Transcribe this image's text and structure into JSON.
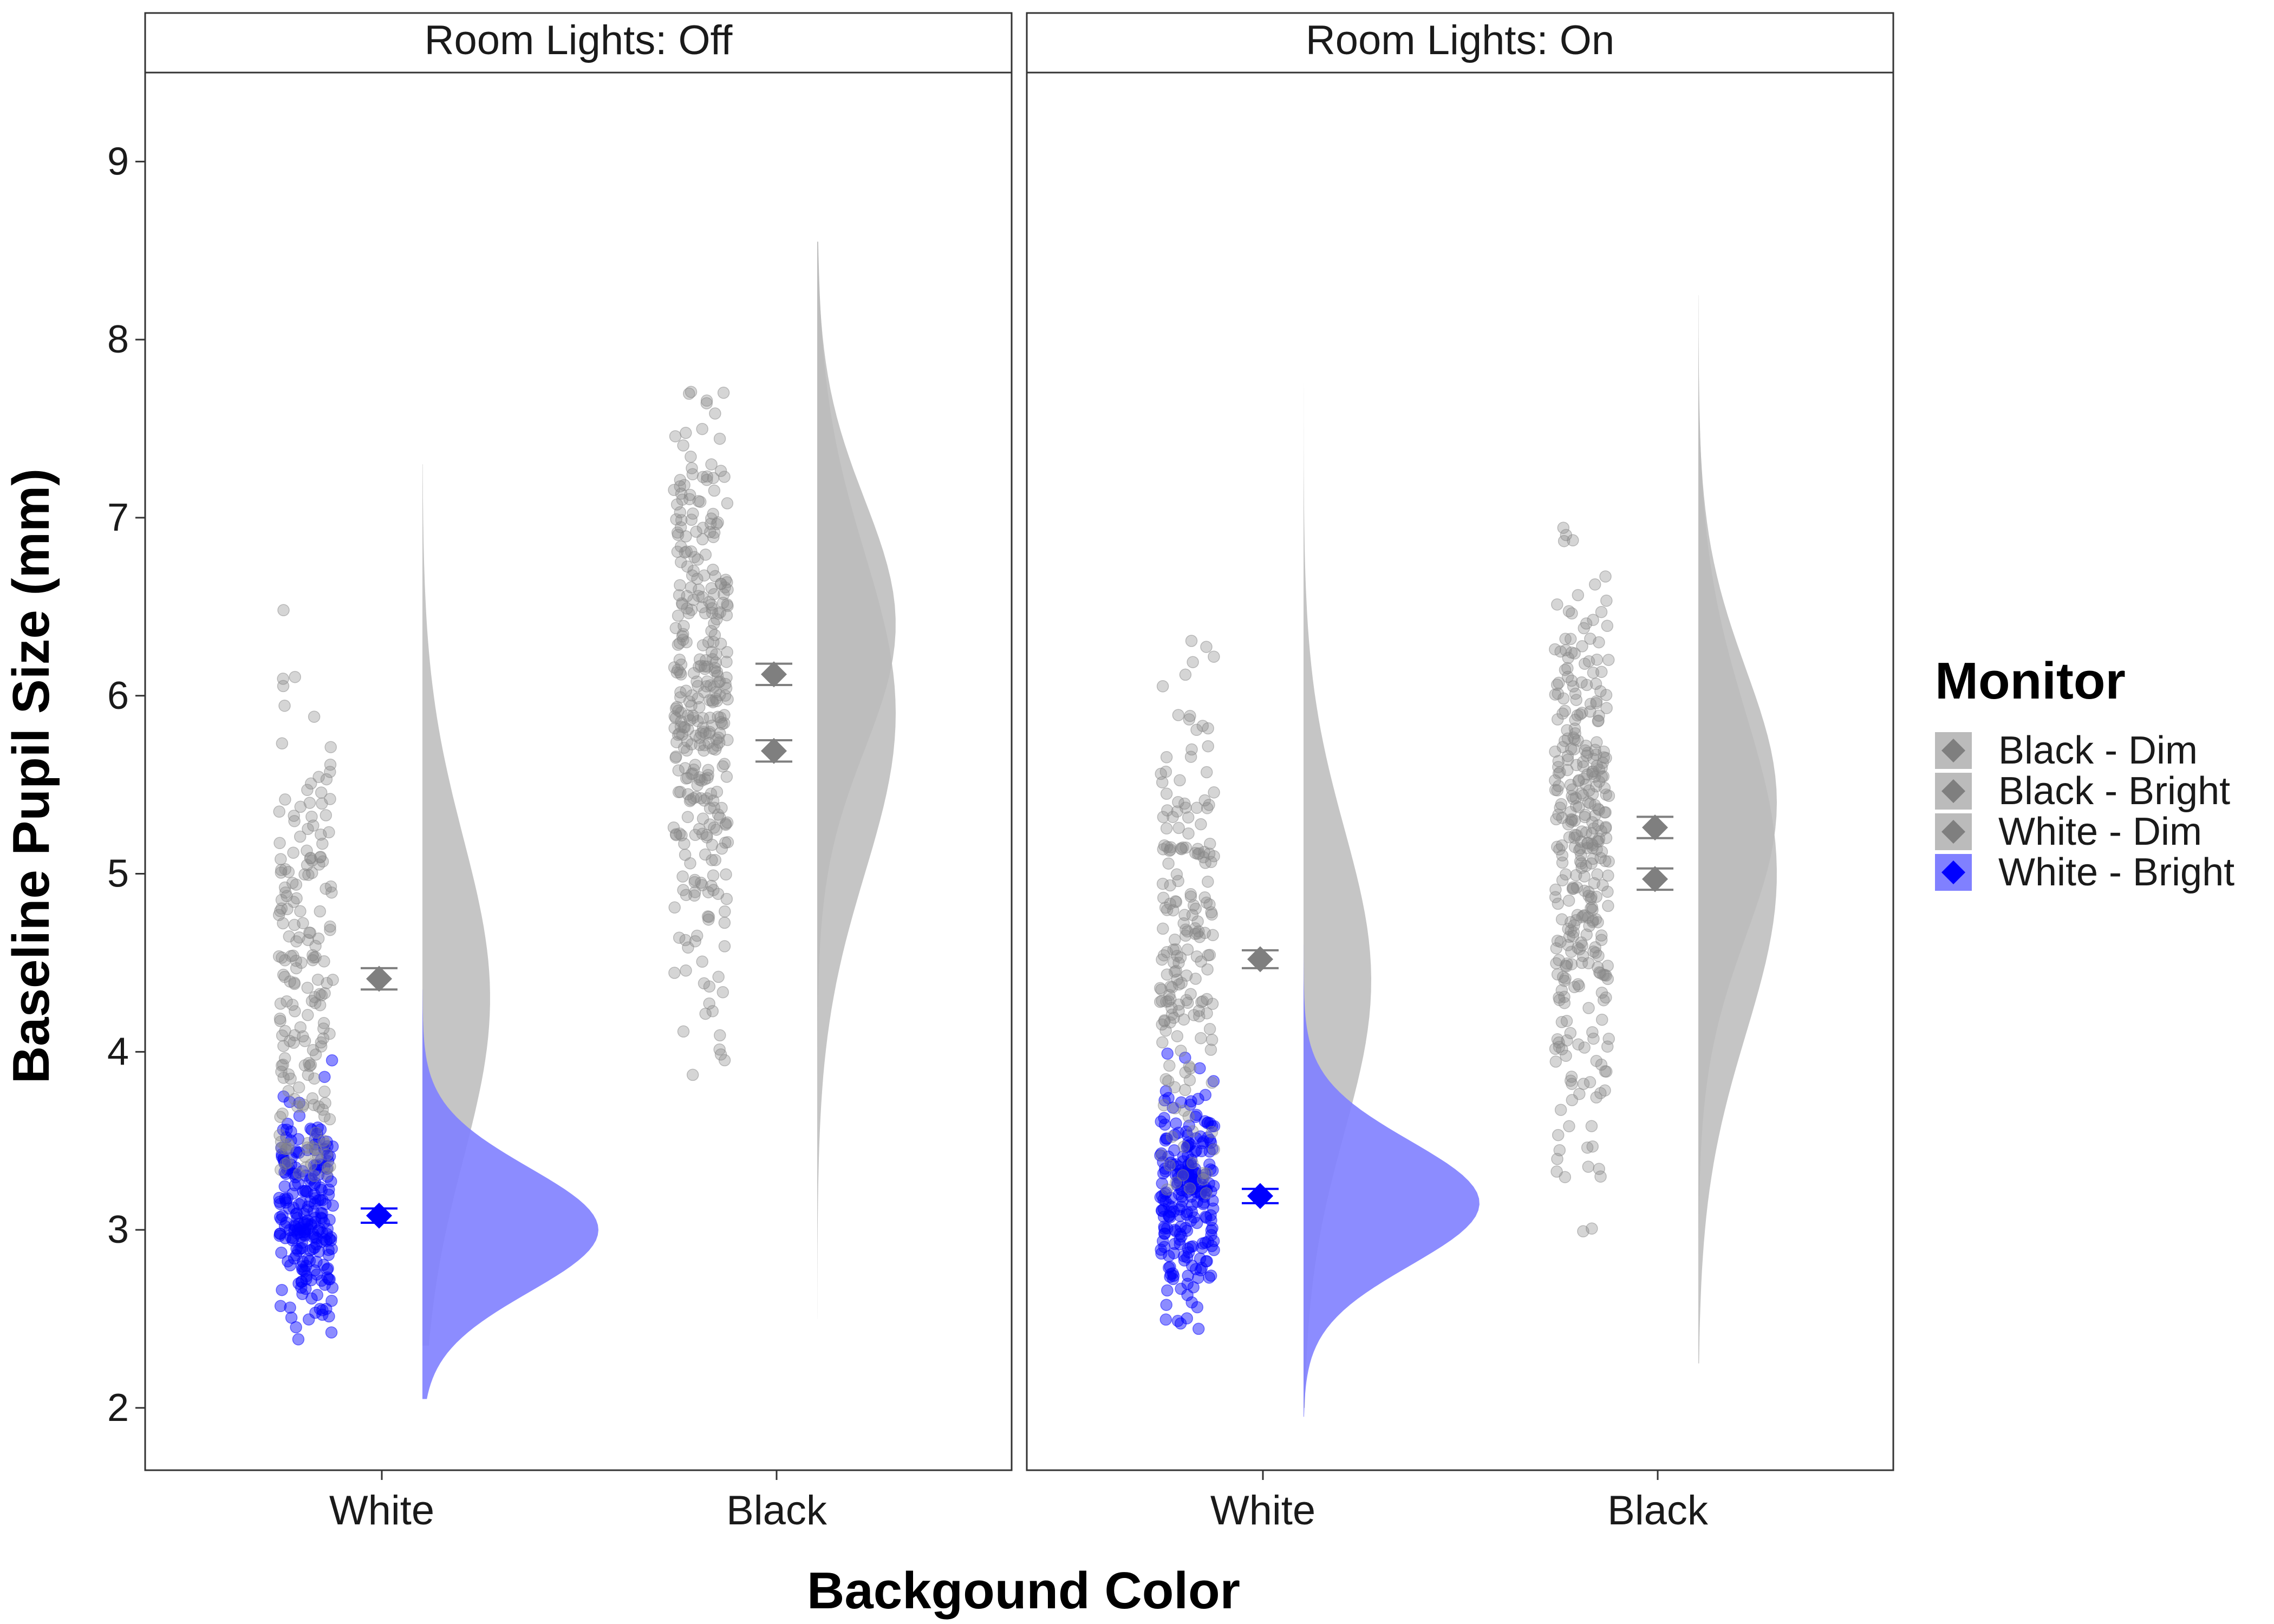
{
  "chart_data": {
    "type": "raincloud",
    "xlabel": "Backgound Color",
    "ylabel": "Baseline Pupil Size (mm)",
    "ylim": [
      1.65,
      9.5
    ],
    "yticks": [
      "2",
      "3",
      "4",
      "5",
      "6",
      "7",
      "8",
      "9"
    ],
    "categories": [
      "White",
      "Black"
    ],
    "legend": {
      "title": "Monitor",
      "position": "right",
      "entries": [
        "Black - Dim",
        "Black - Bright",
        "White - Dim",
        "White - Bright"
      ]
    },
    "colors": {
      "gray_point": "#888888",
      "gray_mean": "#7f7f7f",
      "gray_cloud": "#bbbbbb",
      "blue": "#0000ff",
      "blue_cloud": "#8080ff"
    },
    "panels": [
      {
        "title": "Room Lights: Off",
        "groups": [
          {
            "category": "White",
            "color": "blue",
            "mean": 3.08,
            "se": 0.04,
            "ymin": 2.05,
            "ymax": 4.35,
            "peak_y": 3.0,
            "sd": 0.35,
            "points_min": 2.38,
            "points_max": 4.02
          },
          {
            "category": "White",
            "color": "gray",
            "mean": 4.41,
            "se": 0.06,
            "ymin": 2.35,
            "ymax": 7.3,
            "peak_y": 4.3,
            "sd": 0.9,
            "points_min": 3.3,
            "points_max": 6.5
          },
          {
            "category": "Black",
            "color": "gray",
            "mean": 6.12,
            "se": 0.06,
            "ymin": 2.5,
            "ymax": 8.55,
            "peak_y": 6.4,
            "sd": 0.7,
            "points_min": 3.27,
            "points_max": 7.75
          },
          {
            "category": "Black",
            "color": "gray",
            "mean": 5.69,
            "se": 0.06,
            "ymin": 2.5,
            "ymax": 8.55,
            "peak_y": 5.9,
            "sd": 0.9,
            "points_min": 3.27,
            "points_max": 7.75
          }
        ]
      },
      {
        "title": "Room Lights: On",
        "groups": [
          {
            "category": "White",
            "color": "blue",
            "mean": 3.19,
            "se": 0.04,
            "ymin": 1.95,
            "ymax": 4.6,
            "peak_y": 3.15,
            "sd": 0.35,
            "points_min": 2.42,
            "points_max": 4.3
          },
          {
            "category": "White",
            "color": "gray",
            "mean": 4.52,
            "se": 0.05,
            "ymin": 2.0,
            "ymax": 7.85,
            "peak_y": 4.4,
            "sd": 0.85,
            "points_min": 3.2,
            "points_max": 7.12
          },
          {
            "category": "Black",
            "color": "gray",
            "mean": 5.26,
            "se": 0.06,
            "ymin": 2.25,
            "ymax": 8.25,
            "peak_y": 5.4,
            "sd": 0.75,
            "points_min": 2.95,
            "points_max": 7.48
          },
          {
            "category": "Black",
            "color": "gray",
            "mean": 4.97,
            "se": 0.06,
            "ymin": 2.25,
            "ymax": 8.25,
            "peak_y": 5.0,
            "sd": 0.9,
            "points_min": 2.95,
            "points_max": 7.48
          }
        ]
      }
    ]
  }
}
